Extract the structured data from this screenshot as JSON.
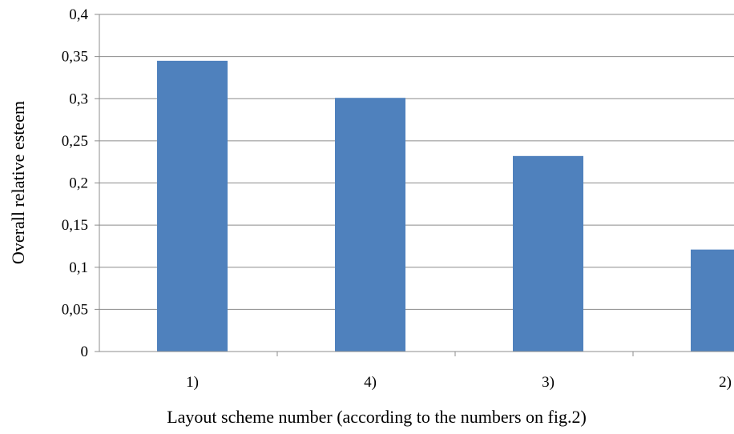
{
  "chart_data": {
    "type": "bar",
    "title": "",
    "xlabel": "Layout scheme number (according to the numbers on fig.2)",
    "ylabel": "Overall relative esteem",
    "categories": [
      "1)",
      "4)",
      "3)",
      "2)"
    ],
    "values": [
      0.345,
      0.301,
      0.232,
      0.121
    ],
    "ylim": [
      0,
      0.4
    ],
    "yticks": [
      0,
      0.05,
      0.1,
      0.15,
      0.2,
      0.25,
      0.3,
      0.35,
      0.4
    ],
    "ytick_labels": [
      "0",
      "0,05",
      "0,1",
      "0,15",
      "0,2",
      "0,25",
      "0,3",
      "0,35",
      "0,4"
    ],
    "grid": true,
    "legend": "none",
    "bar_color": "#4f81bd"
  }
}
